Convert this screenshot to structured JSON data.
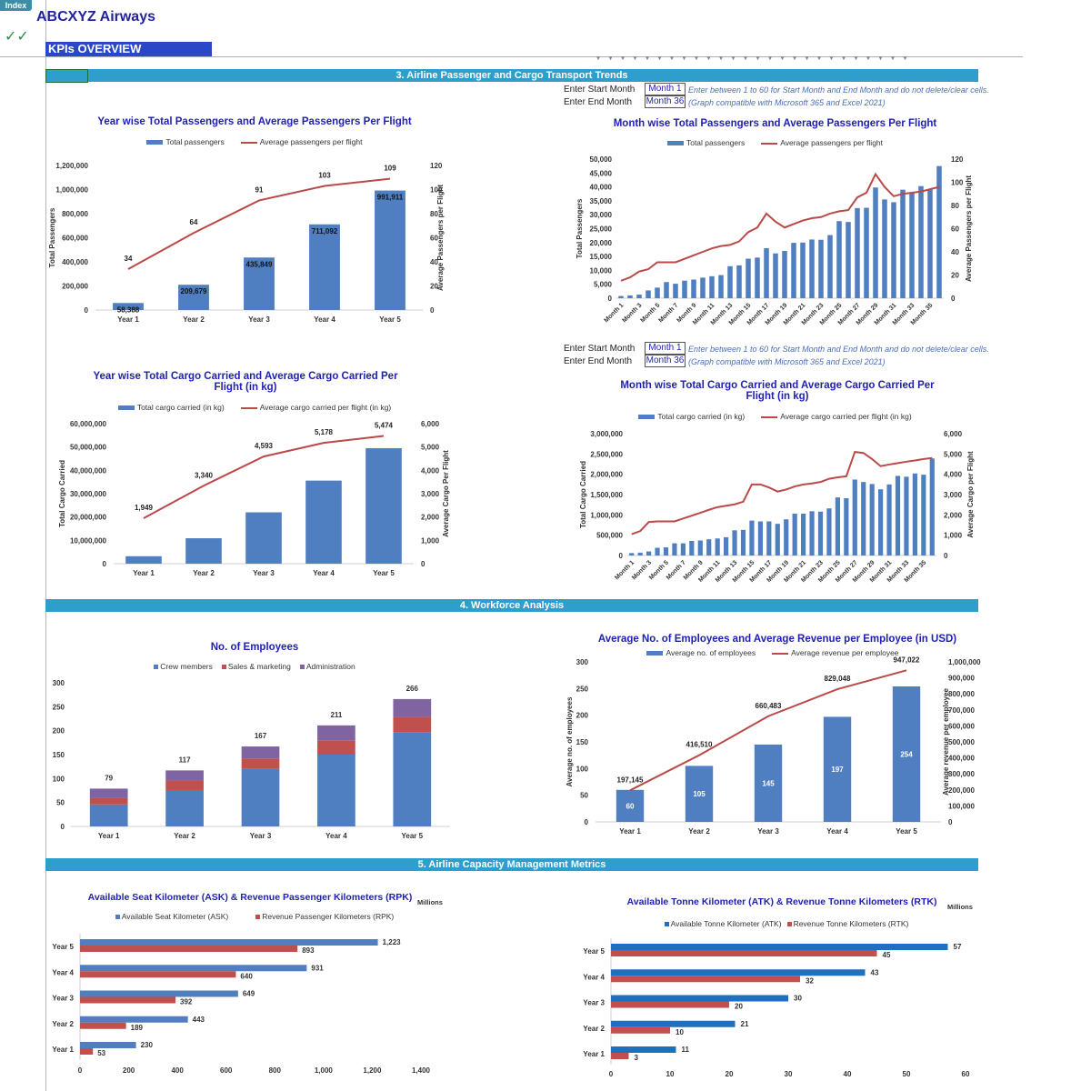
{
  "app": {
    "index_button": "Index",
    "title": "ABCXYZ Airways",
    "checkmarks": "✓✓",
    "kpi_banner": "KPIs OVERVIEW"
  },
  "sections": {
    "s3": "3. Airline Passenger and Cargo Transport Trends",
    "s4": "4. Workforce Analysis",
    "s5": "5. Airline Capacity Management Metrics"
  },
  "month_inputs": [
    {
      "start_label": "Enter Start Month",
      "end_label": "Enter End Month",
      "start_value": "Month 1",
      "end_value": "Month 36",
      "note1": "Enter between 1 to 60 for Start Month and End Month and do not delete/clear cells.",
      "note2": "(Graph compatible with Microsoft 365 and Excel 2021)"
    },
    {
      "start_label": "Enter Start Month",
      "end_label": "Enter End Month",
      "start_value": "Month 1",
      "end_value": "Month 36",
      "note1": "Enter between 1 to 60 for Start Month and End Month and do not delete/clear cells.",
      "note2": "(Graph compatible with Microsoft 365 and Excel 2021)"
    }
  ],
  "colors": {
    "bar_blue": "#4f7fc0",
    "line_red": "#b94a48",
    "sales_red": "#c0504d",
    "admin_purple": "#8064a2",
    "atk_blue": "#1f6fc0",
    "section_bar": "#2e9fcc",
    "title_blue": "#1f1fb4"
  },
  "chart_data": [
    {
      "type": "bar+line",
      "title": "Year wise Total Passengers and Average Passengers Per Flight",
      "categories": [
        "Year 1",
        "Year 2",
        "Year 3",
        "Year 4",
        "Year 5"
      ],
      "series": [
        {
          "name": "Total passengers",
          "values": [
            58388,
            209679,
            435849,
            711092,
            991911
          ],
          "axis": "left"
        },
        {
          "name": "Average passengers per flight",
          "values": [
            34,
            64,
            91,
            103,
            109
          ],
          "axis": "right"
        }
      ],
      "ylabel": "Total Passengers",
      "y2label": "Average Passengers per Flight",
      "ylim": [
        0,
        1200000
      ],
      "ytick_step": 200000,
      "y2lim": [
        0,
        120
      ],
      "y2tick_step": 20
    },
    {
      "type": "bar+line",
      "title": "Month wise Total Passengers and Average Passengers Per Flight",
      "categories": [
        "Month 1",
        "Month 2",
        "Month 3",
        "Month 4",
        "Month 5",
        "Month 6",
        "Month 7",
        "Month 8",
        "Month 9",
        "Month 10",
        "Month 11",
        "Month 12",
        "Month 13",
        "Month 14",
        "Month 15",
        "Month 16",
        "Month 17",
        "Month 18",
        "Month 19",
        "Month 20",
        "Month 21",
        "Month 22",
        "Month 23",
        "Month 24",
        "Month 25",
        "Month 26",
        "Month 27",
        "Month 28",
        "Month 29",
        "Month 30",
        "Month 31",
        "Month 32",
        "Month 33",
        "Month 34",
        "Month 35",
        "Month 36"
      ],
      "series": [
        {
          "name": "Total passengers",
          "values": [
            800,
            1000,
            1300,
            2800,
            3800,
            5800,
            5200,
            6300,
            6700,
            7400,
            7900,
            8300,
            11500,
            11800,
            14200,
            14600,
            18000,
            16100,
            17000,
            19900,
            20000,
            21100,
            21000,
            22700,
            27700,
            27400,
            32400,
            32500,
            39800,
            35500,
            34500,
            39000,
            38000,
            40300,
            39000,
            47500
          ],
          "axis": "left"
        },
        {
          "name": "Average passengers per flight",
          "values": [
            15,
            18,
            23,
            25,
            31,
            31,
            31,
            34,
            37,
            40,
            43,
            45,
            46,
            49,
            57,
            61,
            73,
            66,
            61,
            64,
            67,
            69,
            70,
            73,
            75,
            76,
            87,
            91,
            107,
            96,
            88,
            90,
            91,
            92,
            94,
            96
          ],
          "axis": "right"
        }
      ],
      "ylabel": "Total Passengers",
      "y2label": "Average Passengers per Flight",
      "ylim": [
        0,
        50000
      ],
      "ytick_step": 5000,
      "y2lim": [
        0,
        120
      ],
      "y2tick_step": 20
    },
    {
      "type": "bar+line",
      "title": "Year wise Total Cargo Carried and Average Cargo Carried Per Flight (in kg)",
      "categories": [
        "Year 1",
        "Year 2",
        "Year 3",
        "Year 4",
        "Year 5"
      ],
      "series": [
        {
          "name": "Total cargo carried (in kg)",
          "values": [
            3200000,
            10900000,
            22000000,
            35600000,
            49500000
          ],
          "axis": "left"
        },
        {
          "name": "Average cargo carried per flight (in kg)",
          "values": [
            1949,
            3340,
            4593,
            5178,
            5474
          ],
          "axis": "right"
        }
      ],
      "ylabel": "Total Cargo Carried",
      "y2label": "Average Cargo Per Flight",
      "ylim": [
        0,
        60000000
      ],
      "ytick_step": 10000000,
      "y2lim": [
        0,
        6000
      ],
      "y2tick_step": 1000
    },
    {
      "type": "bar+line",
      "title": "Month wise Total Cargo Carried and Average Cargo Carried Per Flight (in kg)",
      "categories": [
        "Month 1",
        "Month 2",
        "Month 3",
        "Month 4",
        "Month 5",
        "Month 6",
        "Month 7",
        "Month 8",
        "Month 9",
        "Month 10",
        "Month 11",
        "Month 12",
        "Month 13",
        "Month 14",
        "Month 15",
        "Month 16",
        "Month 17",
        "Month 18",
        "Month 19",
        "Month 20",
        "Month 21",
        "Month 22",
        "Month 23",
        "Month 24",
        "Month 25",
        "Month 26",
        "Month 27",
        "Month 28",
        "Month 29",
        "Month 30",
        "Month 31",
        "Month 32",
        "Month 33",
        "Month 34",
        "Month 35",
        "Month 36"
      ],
      "series": [
        {
          "name": "Total cargo carried (in kg)",
          "values": [
            60000,
            70000,
            100000,
            190000,
            200000,
            300000,
            300000,
            360000,
            370000,
            400000,
            420000,
            450000,
            620000,
            630000,
            860000,
            840000,
            840000,
            780000,
            890000,
            1030000,
            1030000,
            1090000,
            1080000,
            1160000,
            1430000,
            1410000,
            1870000,
            1810000,
            1760000,
            1630000,
            1750000,
            1960000,
            1940000,
            2020000,
            1990000,
            2390000
          ],
          "axis": "left"
        },
        {
          "name": "Average cargo carried per flight (in kg)",
          "values": [
            1050,
            1200,
            1650,
            1680,
            1680,
            1680,
            1820,
            1960,
            2100,
            2250,
            2380,
            2450,
            2520,
            2650,
            3500,
            3500,
            3350,
            3150,
            3250,
            3400,
            3500,
            3550,
            3620,
            3780,
            3850,
            3900,
            5100,
            5050,
            4750,
            4400,
            4480,
            4550,
            4620,
            4680,
            4750,
            4800
          ],
          "axis": "right"
        }
      ],
      "ylabel": "Total Cargo Carried",
      "y2label": "Average Cargo per Flight",
      "ylim": [
        0,
        3000000
      ],
      "ytick_step": 500000,
      "y2lim": [
        0,
        6000
      ],
      "y2tick_step": 1000
    },
    {
      "type": "stacked-bar",
      "title": "No. of Employees",
      "categories": [
        "Year 1",
        "Year 2",
        "Year 3",
        "Year 4",
        "Year 5"
      ],
      "series": [
        {
          "name": "Crew members",
          "values": [
            46,
            76,
            120,
            150,
            197
          ]
        },
        {
          "name": "Sales & marketing",
          "values": [
            13,
            20,
            22,
            30,
            32
          ]
        },
        {
          "name": "Administration",
          "values": [
            20,
            21,
            25,
            31,
            37
          ]
        }
      ],
      "totals": [
        79,
        117,
        167,
        211,
        266
      ],
      "ylim": [
        0,
        300
      ],
      "ytick_step": 50
    },
    {
      "type": "bar+line",
      "title": "Average No. of Employees and Average Revenue per Employee (in USD)",
      "categories": [
        "Year 1",
        "Year 2",
        "Year 3",
        "Year 4",
        "Year 5"
      ],
      "series": [
        {
          "name": "Average no. of employees",
          "values": [
            60,
            105,
            145,
            197,
            254
          ],
          "axis": "left"
        },
        {
          "name": "Average revenue per employee",
          "values": [
            197145,
            416510,
            660483,
            829048,
            947022
          ],
          "axis": "right"
        }
      ],
      "ylabel": "Average no. of  employees",
      "y2label": "Average revenue per employee",
      "ylim": [
        0,
        300
      ],
      "ytick_step": 50,
      "y2lim": [
        0,
        1000000
      ],
      "y2tick_step": 100000
    },
    {
      "type": "horizontal-bar",
      "title": "Available Seat Kilometer (ASK) & Revenue Passenger Kilometers (RPK)",
      "unit": "Millions",
      "categories": [
        "Year 1",
        "Year 2",
        "Year 3",
        "Year 4",
        "Year 5"
      ],
      "series": [
        {
          "name": "Available Seat Kilometer (ASK)",
          "values": [
            230,
            443,
            649,
            931,
            1223
          ]
        },
        {
          "name": "Revenue Passenger Kilometers (RPK)",
          "values": [
            53,
            189,
            392,
            640,
            893
          ]
        }
      ],
      "xlim": [
        0,
        1400
      ],
      "xtick_step": 200
    },
    {
      "type": "horizontal-bar",
      "title": "Available Tonne Kilometer (ATK) & Revenue Tonne Kilometers (RTK)",
      "unit": "Millions",
      "categories": [
        "Year 1",
        "Year 2",
        "Year 3",
        "Year 4",
        "Year 5"
      ],
      "series": [
        {
          "name": "Available Tonne Kilometer (ATK)",
          "values": [
            11,
            21,
            30,
            43,
            57
          ]
        },
        {
          "name": "Revenue Tonne Kilometers (RTK)",
          "values": [
            3,
            10,
            20,
            32,
            45
          ]
        }
      ],
      "xlim": [
        0,
        60
      ],
      "xtick_step": 10
    }
  ]
}
